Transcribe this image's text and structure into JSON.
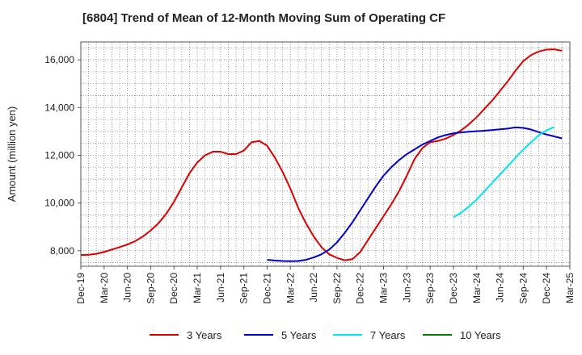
{
  "chart_data": {
    "type": "line",
    "title": "[6804]  Trend of Mean of 12-Month Moving Sum of Operating CF",
    "xlabel": "",
    "ylabel": "Amount (million yen)",
    "ylim": [
      7350,
      16750
    ],
    "yticks": [
      8000,
      10000,
      12000,
      14000,
      16000
    ],
    "ytick_labels": [
      "8,000",
      "10,000",
      "12,000",
      "14,000",
      "16,000"
    ],
    "x_start": "Dec-19",
    "x_months": 63,
    "xtick_labels": [
      "Dec-19",
      "Mar-20",
      "Jun-20",
      "Sep-20",
      "Dec-20",
      "Mar-21",
      "Jun-21",
      "Sep-21",
      "Dec-21",
      "Mar-22",
      "Jun-22",
      "Sep-22",
      "Dec-22",
      "Mar-23",
      "Jun-23",
      "Sep-23",
      "Dec-23",
      "Mar-24",
      "Jun-24",
      "Sep-24",
      "Dec-24",
      "Mar-25"
    ],
    "grid": true,
    "legend_position": "bottom",
    "series": [
      {
        "name": "3 Years",
        "color": "#dd0000",
        "start_index": 0,
        "values": [
          7820,
          7830,
          7870,
          7950,
          8050,
          8150,
          8260,
          8400,
          8600,
          8850,
          9150,
          9550,
          10050,
          10650,
          11250,
          11700,
          12000,
          12150,
          12150,
          12050,
          12050,
          12200,
          12550,
          12600,
          12400,
          11900,
          11300,
          10600,
          9800,
          9150,
          8600,
          8150,
          7850,
          7700,
          7600,
          7650,
          7950,
          8450,
          8950,
          9450,
          9950,
          10500,
          11150,
          11850,
          12300,
          12550,
          12600,
          12700,
          12850,
          13050,
          13300,
          13600,
          13950,
          14300,
          14700,
          15100,
          15550,
          15950,
          16200,
          16350,
          16430,
          16440,
          16380
        ]
      },
      {
        "name": "5 Years",
        "color": "#0000cc",
        "start_index": 24,
        "values": [
          7620,
          7590,
          7570,
          7560,
          7570,
          7620,
          7720,
          7850,
          8050,
          8350,
          8750,
          9200,
          9700,
          10200,
          10700,
          11150,
          11500,
          11800,
          12050,
          12250,
          12450,
          12600,
          12750,
          12850,
          12920,
          12960,
          12990,
          13010,
          13030,
          13060,
          13090,
          13120,
          13170,
          13150,
          13080,
          12970,
          12870,
          12790,
          12710
        ]
      },
      {
        "name": "7 Years",
        "color": "#00e5ee",
        "start_index": 48,
        "values": [
          9400,
          9600,
          9850,
          10150,
          10500,
          10850,
          11200,
          11550,
          11900,
          12250,
          12550,
          12850,
          13050,
          13180
        ]
      },
      {
        "name": "10 Years",
        "color": "#008000",
        "start_index": 0,
        "values": []
      }
    ]
  }
}
